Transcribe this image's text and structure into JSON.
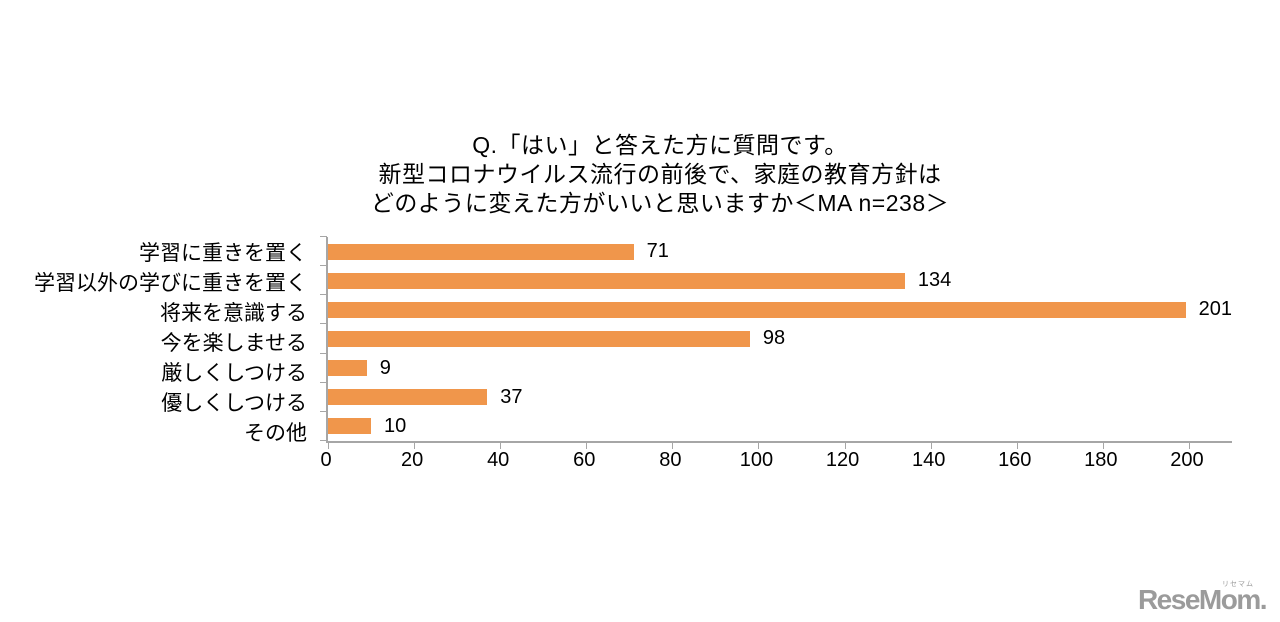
{
  "page": {
    "background": "#ffffff"
  },
  "title": {
    "line1": "Q.「はい」と答えた方に質問です。",
    "line2": "新型コロナウイルス流行の前後で、家庭の教育方針は",
    "line3": "どのように変えた方がいいと思いますか＜MA n=238＞"
  },
  "chart_data": {
    "type": "bar",
    "orientation": "horizontal",
    "title": "Q.「はい」と答えた方に質問です。新型コロナウイルス流行の前後で、家庭の教育方針はどのように変えた方がいいと思いますか＜MA n=238＞",
    "sample_note": "MA n=238",
    "categories": [
      "学習に重きを置く",
      "学習以外の学びに重きを置く",
      "将来を意識する",
      "今を楽しませる",
      "厳しくしつける",
      "優しくしつける",
      "その他"
    ],
    "values": [
      71,
      134,
      201,
      98,
      9,
      37,
      10
    ],
    "data_labels": true,
    "xlabel": "",
    "ylabel": "",
    "xlim": [
      0,
      210
    ],
    "x_ticks": [
      0,
      20,
      40,
      60,
      80,
      100,
      120,
      140,
      160,
      180,
      200
    ],
    "grid": false,
    "legend": "none",
    "bar_color": "#F0964B",
    "axis_color": "#A6A6A6",
    "text_color": "#000000"
  },
  "watermark": {
    "text": "ReseMom.",
    "ruby": "リセマム",
    "color": "#9B9B9B"
  }
}
